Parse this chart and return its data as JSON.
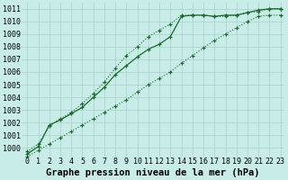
{
  "xlabel": "Graphe pression niveau de la mer (hPa)",
  "ylabel": "",
  "bg_color": "#c8ede8",
  "grid_color": "#aacfc8",
  "line_color": "#1a6b2a",
  "xlim_min": -0.5,
  "xlim_max": 23.3,
  "ylim_min": 999.3,
  "ylim_max": 1011.5,
  "yticks": [
    1000,
    1001,
    1002,
    1003,
    1004,
    1005,
    1006,
    1007,
    1008,
    1009,
    1010,
    1011
  ],
  "xticks": [
    0,
    1,
    2,
    3,
    4,
    5,
    6,
    7,
    8,
    9,
    10,
    11,
    12,
    13,
    14,
    15,
    16,
    17,
    18,
    19,
    20,
    21,
    22,
    23
  ],
  "line1_x": [
    0,
    1,
    2,
    3,
    4,
    5,
    6,
    7,
    8,
    9,
    10,
    11,
    12,
    13,
    14,
    15,
    16,
    17,
    18,
    19,
    20,
    21,
    22,
    23
  ],
  "line1_y": [
    999.7,
    1000.3,
    1001.7,
    1002.3,
    1002.8,
    1003.5,
    1004.3,
    1005.2,
    1006.3,
    1007.3,
    1008.0,
    1008.8,
    1009.3,
    1009.8,
    1010.5,
    1010.5,
    1010.5,
    1010.4,
    1010.4,
    1010.5,
    1010.7,
    1010.8,
    1011.0,
    1011.0
  ],
  "line2_x": [
    0,
    1,
    2,
    3,
    4,
    5,
    6,
    7,
    8,
    9,
    10,
    11,
    12,
    13,
    14,
    15,
    16,
    17,
    18,
    19,
    20,
    21,
    22,
    23
  ],
  "line2_y": [
    999.5,
    1000.1,
    1001.8,
    1002.2,
    1002.7,
    1003.2,
    1004.0,
    1004.8,
    1005.8,
    1006.5,
    1007.2,
    1007.8,
    1008.2,
    1008.8,
    1010.4,
    1010.5,
    1010.5,
    1010.4,
    1010.5,
    1010.5,
    1010.7,
    1010.9,
    1011.0,
    1011.0
  ],
  "line3_x": [
    0,
    1,
    2,
    3,
    4,
    5,
    6,
    7,
    8,
    9,
    10,
    11,
    12,
    13,
    14,
    15,
    16,
    17,
    18,
    19,
    20,
    21,
    22,
    23
  ],
  "line3_y": [
    999.3,
    999.8,
    1000.3,
    1000.8,
    1001.3,
    1001.8,
    1002.3,
    1002.8,
    1003.3,
    1003.8,
    1004.4,
    1005.0,
    1005.5,
    1006.0,
    1006.7,
    1007.3,
    1007.9,
    1008.5,
    1009.0,
    1009.5,
    1010.0,
    1010.4,
    1010.5,
    1010.5
  ],
  "xlabel_fontsize": 7.5,
  "tick_fontsize": 6.0,
  "marker": "+"
}
